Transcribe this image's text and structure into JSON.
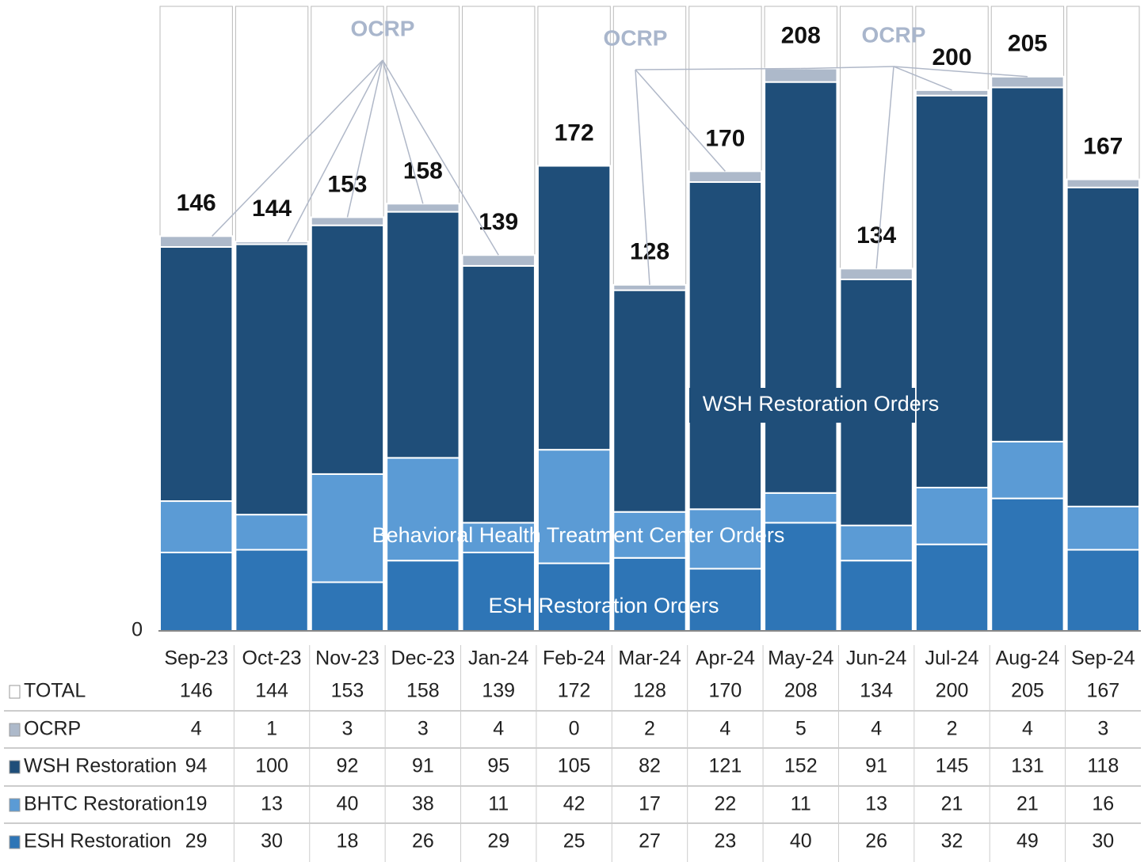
{
  "chart_data": {
    "type": "stacked_bar",
    "categories": [
      "Sep-23",
      "Oct-23",
      "Nov-23",
      "Dec-23",
      "Jan-24",
      "Feb-24",
      "Mar-24",
      "Apr-24",
      "May-24",
      "Jun-24",
      "Jul-24",
      "Aug-24",
      "Sep-24"
    ],
    "series": [
      {
        "name": "TOTAL",
        "color": "#ffffff",
        "values": [
          146,
          144,
          153,
          158,
          139,
          172,
          128,
          170,
          208,
          134,
          200,
          205,
          167
        ]
      },
      {
        "name": "OCRP",
        "color": "#adb9ca",
        "values": [
          4,
          1,
          3,
          3,
          4,
          0,
          2,
          4,
          5,
          4,
          2,
          4,
          3
        ]
      },
      {
        "name": "WSH Restoration",
        "color": "#1f4e79",
        "values": [
          94,
          100,
          92,
          91,
          95,
          105,
          82,
          121,
          152,
          91,
          145,
          131,
          118
        ]
      },
      {
        "name": "BHTC Restoration",
        "color": "#5b9bd5",
        "values": [
          19,
          13,
          40,
          38,
          11,
          42,
          17,
          22,
          11,
          13,
          21,
          21,
          16
        ]
      },
      {
        "name": "ESH Restoration",
        "color": "#2e75b6",
        "values": [
          29,
          30,
          18,
          26,
          29,
          25,
          27,
          23,
          40,
          26,
          32,
          49,
          30
        ]
      }
    ],
    "annotations": [
      "OCRP",
      "OCRP",
      "OCRP",
      "WSH Restoration Orders",
      "Behavioral Health Treatment Center Orders",
      "ESH Restoration Orders"
    ],
    "ylim": [
      0,
      231
    ],
    "yticks": [
      0
    ]
  }
}
